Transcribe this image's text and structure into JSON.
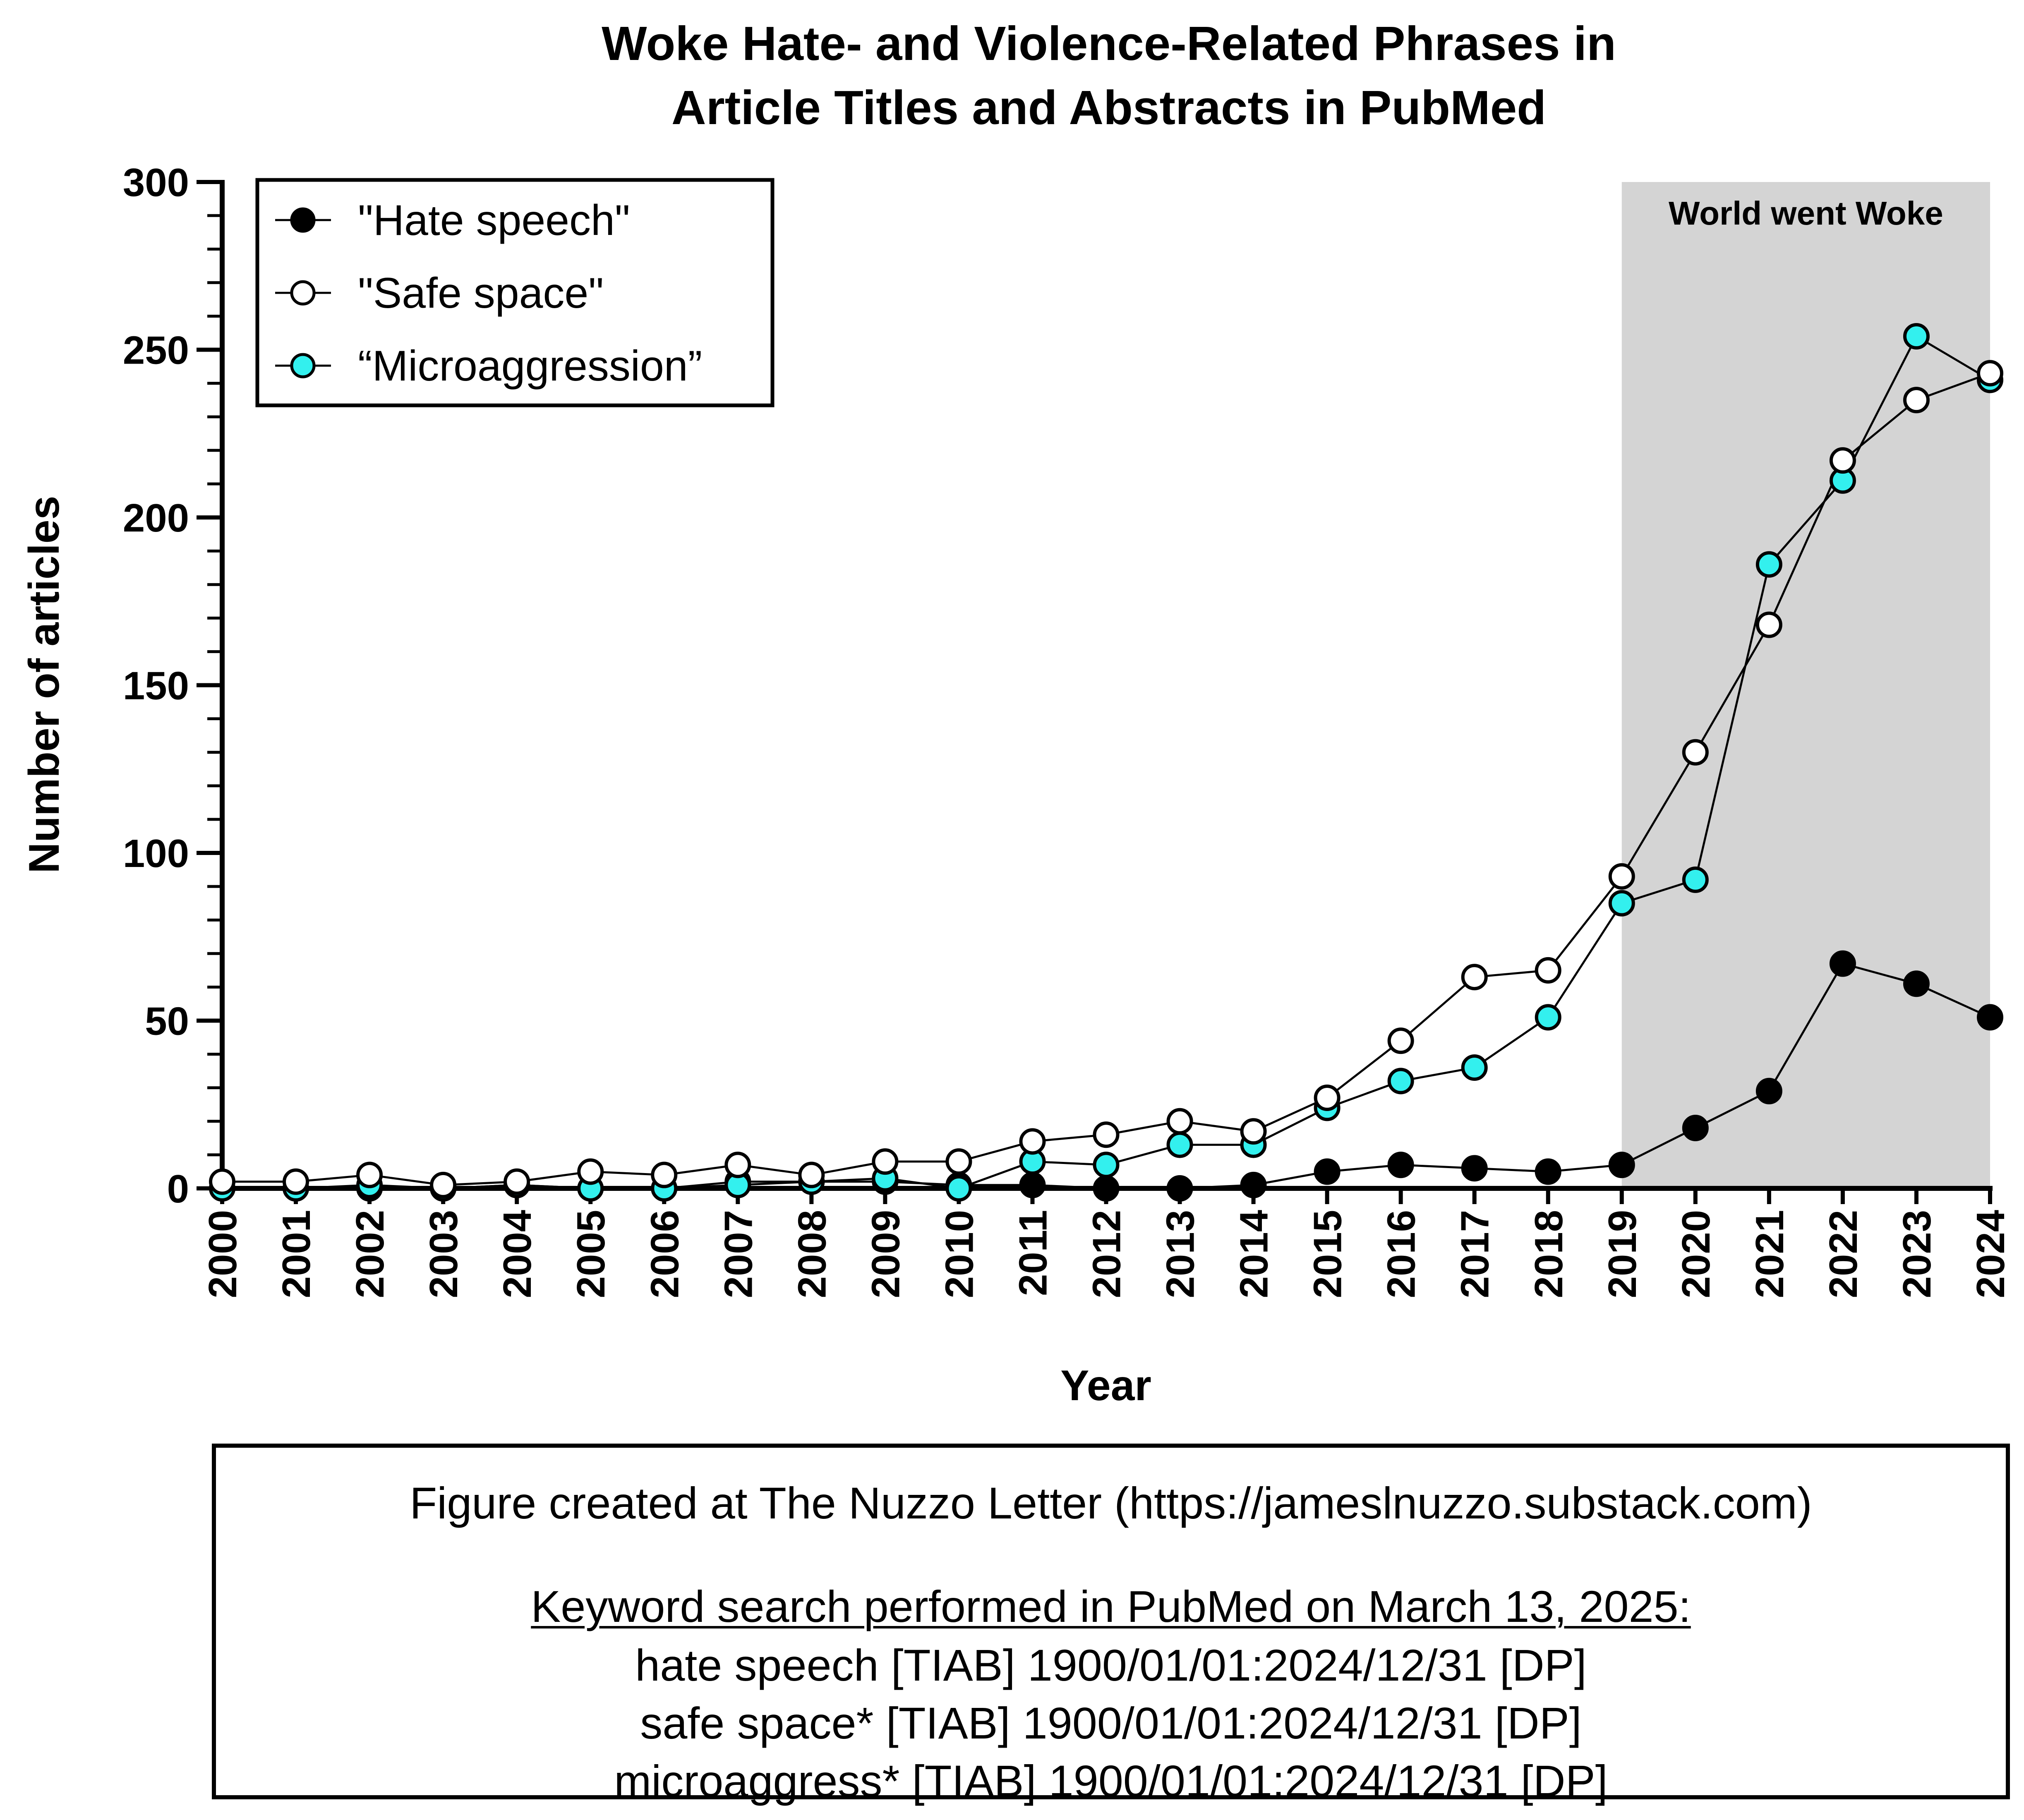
{
  "chart_data": {
    "type": "line",
    "title_lines": [
      "Woke Hate- and Violence-Related Phrases in",
      "Article Titles and Abstracts in PubMed"
    ],
    "xlabel": "Year",
    "ylabel": "Number of articles",
    "ylim": [
      0,
      300
    ],
    "yticks": [
      "0",
      "50",
      "100",
      "150",
      "200",
      "250",
      "300"
    ],
    "categories": [
      "2000",
      "2001",
      "2002",
      "2003",
      "2004",
      "2005",
      "2006",
      "2007",
      "2008",
      "2009",
      "2010",
      "2011",
      "2012",
      "2013",
      "2014",
      "2015",
      "2016",
      "2017",
      "2018",
      "2019",
      "2020",
      "2021",
      "2022",
      "2023",
      "2024"
    ],
    "shaded_region": {
      "from": "2019",
      "to": "2024",
      "label": "World went Woke",
      "color": "#d4d4d4"
    },
    "legend_position": "top-left",
    "series": [
      {
        "name": "\"Hate speech\"",
        "marker": "filled-black",
        "color": "#000000",
        "values": [
          0,
          0,
          0,
          0,
          1,
          0,
          0,
          2,
          2,
          2,
          1,
          1,
          0,
          0,
          1,
          5,
          7,
          6,
          5,
          7,
          18,
          29,
          67,
          61,
          51
        ]
      },
      {
        "name": "\"Safe space\"",
        "marker": "open-white",
        "color": "#ffffff",
        "values": [
          2,
          2,
          4,
          1,
          2,
          5,
          4,
          7,
          4,
          8,
          8,
          14,
          16,
          20,
          17,
          27,
          44,
          63,
          65,
          93,
          130,
          168,
          217,
          235,
          243
        ]
      },
      {
        "name": "“Microaggression”",
        "marker": "filled-cyan",
        "color": "#33f0ee",
        "values": [
          0,
          0,
          1,
          0,
          1,
          0,
          0,
          1,
          2,
          3,
          0,
          8,
          7,
          13,
          13,
          24,
          32,
          36,
          51,
          85,
          92,
          186,
          211,
          254,
          241
        ]
      }
    ]
  },
  "footer": {
    "credit": "Figure created at The Nuzzo Letter (https://jameslnuzzo.substack.com)",
    "search_heading": "Keyword search performed in PubMed on March 13, 2025:",
    "queries": [
      "hate speech [TIAB] 1900/01/01:2024/12/31 [DP]",
      "safe space* [TIAB] 1900/01/01:2024/12/31 [DP]",
      "microaggress* [TIAB] 1900/01/01:2024/12/31 [DP]"
    ]
  }
}
